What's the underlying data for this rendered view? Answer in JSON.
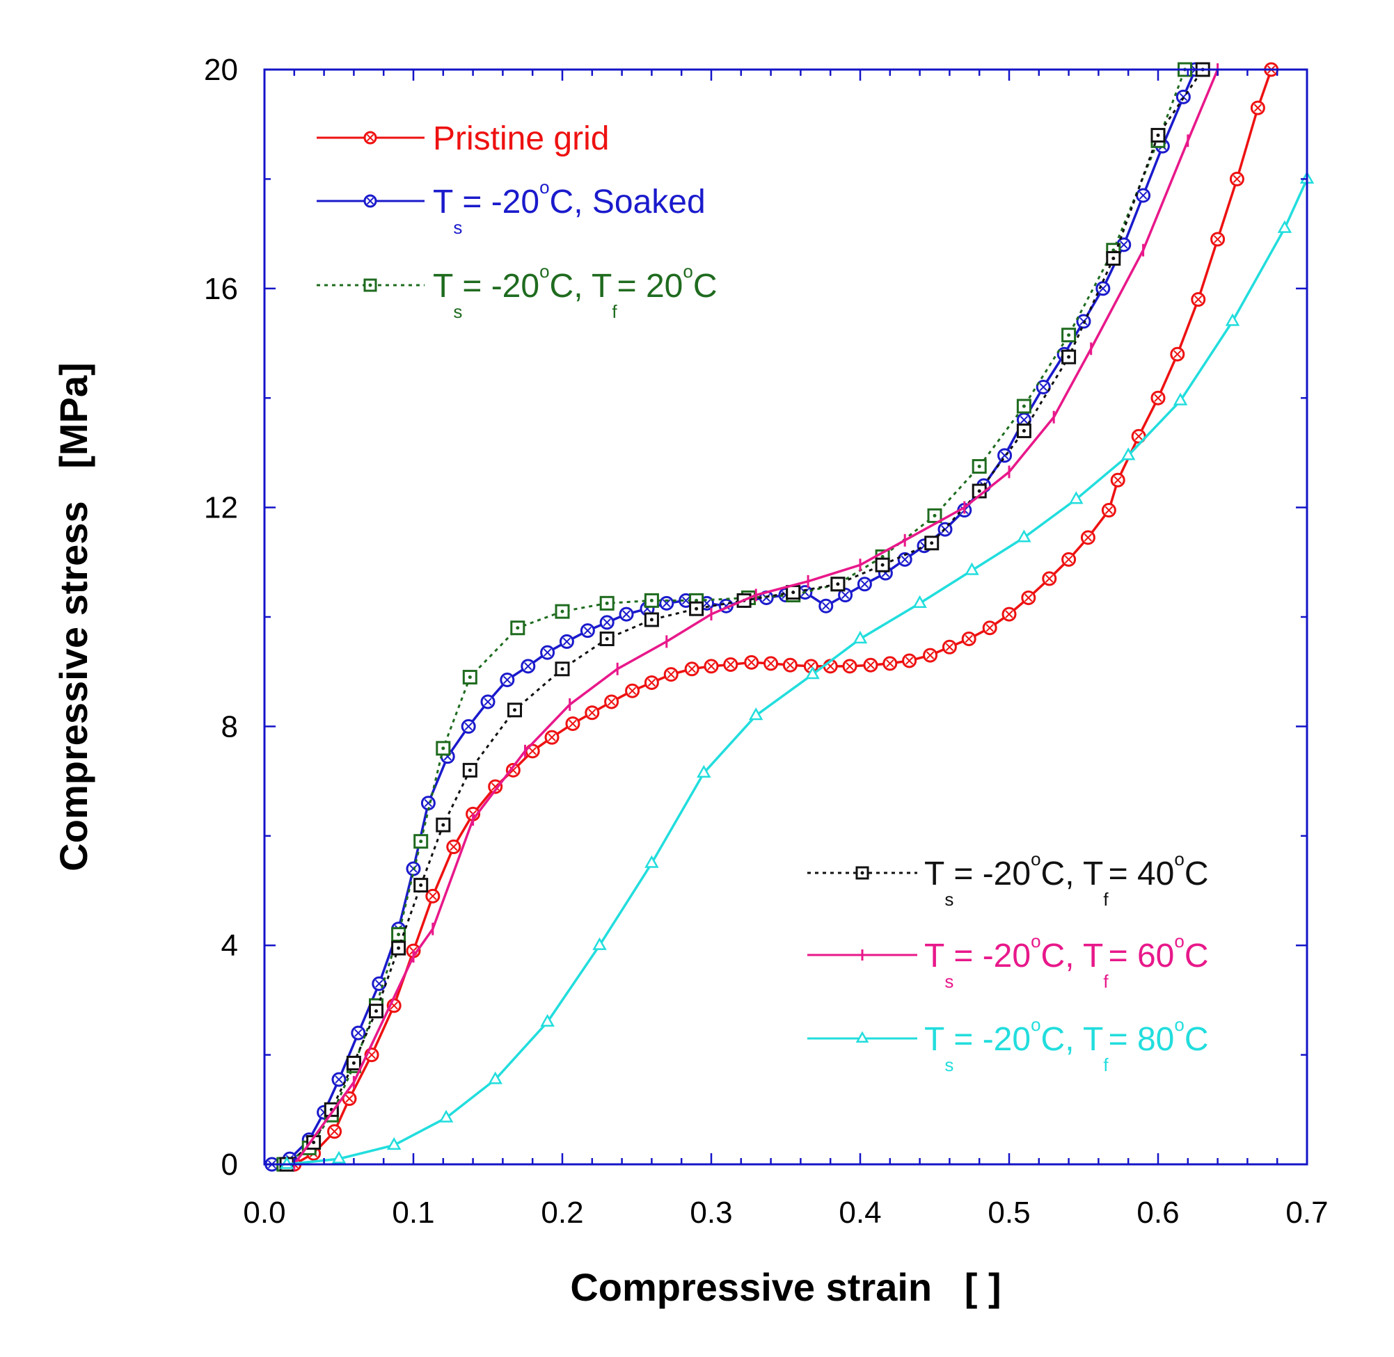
{
  "chart_data": {
    "type": "line",
    "title": "",
    "xlabel": "Compressive strain   [ ]",
    "ylabel": "Compressive stress   [MPa]",
    "xlim": [
      0.0,
      0.7
    ],
    "ylim": [
      0,
      20
    ],
    "x_ticks": [
      "0.0",
      "0.1",
      "0.2",
      "0.3",
      "0.4",
      "0.5",
      "0.6",
      "0.7"
    ],
    "y_ticks": [
      "0",
      "4",
      "8",
      "12",
      "16",
      "20"
    ],
    "grid": false,
    "series": [
      {
        "name": "Pristine grid",
        "label_parts": [
          "Pristine grid"
        ],
        "color": "#ee1111",
        "dash": "solid",
        "marker": "circle-x",
        "legend_position": "top-left",
        "points": [
          [
            0.02,
            0.0
          ],
          [
            0.033,
            0.2
          ],
          [
            0.047,
            0.6
          ],
          [
            0.057,
            1.2
          ],
          [
            0.072,
            2.0
          ],
          [
            0.087,
            2.9
          ],
          [
            0.1,
            3.9
          ],
          [
            0.113,
            4.9
          ],
          [
            0.127,
            5.8
          ],
          [
            0.14,
            6.4
          ],
          [
            0.155,
            6.9
          ],
          [
            0.167,
            7.2
          ],
          [
            0.18,
            7.55
          ],
          [
            0.193,
            7.8
          ],
          [
            0.207,
            8.05
          ],
          [
            0.22,
            8.25
          ],
          [
            0.233,
            8.45
          ],
          [
            0.247,
            8.65
          ],
          [
            0.26,
            8.8
          ],
          [
            0.273,
            8.95
          ],
          [
            0.287,
            9.05
          ],
          [
            0.3,
            9.1
          ],
          [
            0.313,
            9.13
          ],
          [
            0.327,
            9.17
          ],
          [
            0.34,
            9.15
          ],
          [
            0.353,
            9.12
          ],
          [
            0.367,
            9.1
          ],
          [
            0.38,
            9.1
          ],
          [
            0.393,
            9.1
          ],
          [
            0.407,
            9.12
          ],
          [
            0.42,
            9.15
          ],
          [
            0.433,
            9.2
          ],
          [
            0.447,
            9.3
          ],
          [
            0.46,
            9.45
          ],
          [
            0.473,
            9.6
          ],
          [
            0.487,
            9.8
          ],
          [
            0.5,
            10.05
          ],
          [
            0.513,
            10.35
          ],
          [
            0.527,
            10.7
          ],
          [
            0.54,
            11.05
          ],
          [
            0.553,
            11.45
          ],
          [
            0.567,
            11.95
          ],
          [
            0.573,
            12.5
          ],
          [
            0.587,
            13.3
          ],
          [
            0.6,
            14.0
          ],
          [
            0.613,
            14.8
          ],
          [
            0.627,
            15.8
          ],
          [
            0.64,
            16.9
          ],
          [
            0.653,
            18.0
          ],
          [
            0.667,
            19.3
          ],
          [
            0.676,
            20.0
          ]
        ]
      },
      {
        "name": "Ts = -20°C, Soaked",
        "label_parts": [
          "T",
          "s",
          " = -20",
          "o",
          "C, Soaked"
        ],
        "color": "#1a1acc",
        "dash": "solid",
        "marker": "circle-x",
        "legend_position": "top-left",
        "points": [
          [
            0.005,
            0.0
          ],
          [
            0.017,
            0.1
          ],
          [
            0.03,
            0.45
          ],
          [
            0.04,
            0.95
          ],
          [
            0.05,
            1.55
          ],
          [
            0.063,
            2.4
          ],
          [
            0.077,
            3.3
          ],
          [
            0.09,
            4.3
          ],
          [
            0.1,
            5.4
          ],
          [
            0.11,
            6.6
          ],
          [
            0.123,
            7.45
          ],
          [
            0.137,
            8.0
          ],
          [
            0.15,
            8.45
          ],
          [
            0.163,
            8.85
          ],
          [
            0.177,
            9.1
          ],
          [
            0.19,
            9.35
          ],
          [
            0.203,
            9.55
          ],
          [
            0.217,
            9.75
          ],
          [
            0.23,
            9.9
          ],
          [
            0.243,
            10.05
          ],
          [
            0.257,
            10.15
          ],
          [
            0.27,
            10.25
          ],
          [
            0.283,
            10.3
          ],
          [
            0.297,
            10.25
          ],
          [
            0.31,
            10.2
          ],
          [
            0.323,
            10.3
          ],
          [
            0.337,
            10.35
          ],
          [
            0.35,
            10.4
          ],
          [
            0.363,
            10.45
          ],
          [
            0.377,
            10.2
          ],
          [
            0.39,
            10.4
          ],
          [
            0.403,
            10.6
          ],
          [
            0.417,
            10.8
          ],
          [
            0.43,
            11.05
          ],
          [
            0.443,
            11.3
          ],
          [
            0.457,
            11.6
          ],
          [
            0.47,
            11.95
          ],
          [
            0.483,
            12.4
          ],
          [
            0.497,
            12.95
          ],
          [
            0.51,
            13.6
          ],
          [
            0.523,
            14.2
          ],
          [
            0.537,
            14.8
          ],
          [
            0.55,
            15.4
          ],
          [
            0.563,
            16.0
          ],
          [
            0.577,
            16.8
          ],
          [
            0.59,
            17.7
          ],
          [
            0.603,
            18.6
          ],
          [
            0.617,
            19.5
          ],
          [
            0.625,
            20.0
          ]
        ]
      },
      {
        "name": "Ts = -20°C, Tf= 20°C",
        "label_parts": [
          "T",
          "s",
          " = -20",
          "o",
          "C, T",
          "f",
          "= 20",
          "o",
          "C"
        ],
        "color": "#1f6b1f",
        "dash": "dotted",
        "marker": "square-dot",
        "legend_position": "top-left",
        "points": [
          [
            0.013,
            0.0
          ],
          [
            0.03,
            0.3
          ],
          [
            0.045,
            0.9
          ],
          [
            0.06,
            1.8
          ],
          [
            0.075,
            2.9
          ],
          [
            0.09,
            4.2
          ],
          [
            0.105,
            5.9
          ],
          [
            0.12,
            7.6
          ],
          [
            0.138,
            8.9
          ],
          [
            0.17,
            9.8
          ],
          [
            0.2,
            10.1
          ],
          [
            0.23,
            10.25
          ],
          [
            0.26,
            10.3
          ],
          [
            0.29,
            10.3
          ],
          [
            0.325,
            10.35
          ],
          [
            0.355,
            10.4
          ],
          [
            0.385,
            10.6
          ],
          [
            0.415,
            11.1
          ],
          [
            0.45,
            11.85
          ],
          [
            0.48,
            12.75
          ],
          [
            0.51,
            13.85
          ],
          [
            0.54,
            15.15
          ],
          [
            0.57,
            16.7
          ],
          [
            0.6,
            18.7
          ],
          [
            0.618,
            20.0
          ]
        ]
      },
      {
        "name": "Ts = -20°C, Tf= 40°C",
        "label_parts": [
          "T",
          "s",
          " = -20",
          "o",
          "C, T",
          "f",
          "= 40",
          "o",
          "C"
        ],
        "color": "#111111",
        "dash": "dotted",
        "marker": "square-dot",
        "legend_position": "bottom-right",
        "points": [
          [
            0.015,
            0.0
          ],
          [
            0.033,
            0.4
          ],
          [
            0.045,
            1.0
          ],
          [
            0.06,
            1.85
          ],
          [
            0.075,
            2.8
          ],
          [
            0.09,
            3.95
          ],
          [
            0.105,
            5.1
          ],
          [
            0.12,
            6.2
          ],
          [
            0.138,
            7.2
          ],
          [
            0.168,
            8.3
          ],
          [
            0.2,
            9.05
          ],
          [
            0.23,
            9.6
          ],
          [
            0.26,
            9.95
          ],
          [
            0.29,
            10.15
          ],
          [
            0.322,
            10.3
          ],
          [
            0.355,
            10.45
          ],
          [
            0.385,
            10.6
          ],
          [
            0.415,
            10.95
          ],
          [
            0.448,
            11.35
          ],
          [
            0.48,
            12.3
          ],
          [
            0.51,
            13.4
          ],
          [
            0.54,
            14.75
          ],
          [
            0.57,
            16.55
          ],
          [
            0.6,
            18.8
          ],
          [
            0.63,
            20.0
          ]
        ]
      },
      {
        "name": "Ts = -20°C, Tf= 60°C",
        "label_parts": [
          "T",
          "s",
          " = -20",
          "o",
          "C, T",
          "f",
          "= 60",
          "o",
          "C"
        ],
        "color": "#e8188a",
        "dash": "solid",
        "marker": "plus",
        "legend_position": "bottom-right",
        "points": [
          [
            0.02,
            0.0
          ],
          [
            0.06,
            1.5
          ],
          [
            0.1,
            3.8
          ],
          [
            0.113,
            4.3
          ],
          [
            0.14,
            6.3
          ],
          [
            0.175,
            7.55
          ],
          [
            0.205,
            8.4
          ],
          [
            0.237,
            9.05
          ],
          [
            0.27,
            9.55
          ],
          [
            0.3,
            10.05
          ],
          [
            0.33,
            10.4
          ],
          [
            0.365,
            10.65
          ],
          [
            0.4,
            10.95
          ],
          [
            0.43,
            11.4
          ],
          [
            0.47,
            12.0
          ],
          [
            0.5,
            12.65
          ],
          [
            0.53,
            13.65
          ],
          [
            0.555,
            14.9
          ],
          [
            0.59,
            16.7
          ],
          [
            0.62,
            18.7
          ],
          [
            0.64,
            20.0
          ]
        ]
      },
      {
        "name": "Ts = -20°C, Tf= 80°C",
        "label_parts": [
          "T",
          "s",
          " = -20",
          "o",
          "C, T",
          "f",
          "= 80",
          "o",
          "C"
        ],
        "color": "#22dddd",
        "dash": "solid",
        "marker": "triangle",
        "legend_position": "bottom-right",
        "points": [
          [
            0.015,
            0.0
          ],
          [
            0.05,
            0.1
          ],
          [
            0.087,
            0.35
          ],
          [
            0.122,
            0.85
          ],
          [
            0.155,
            1.55
          ],
          [
            0.19,
            2.6
          ],
          [
            0.225,
            4.0
          ],
          [
            0.26,
            5.5
          ],
          [
            0.295,
            7.15
          ],
          [
            0.33,
            8.2
          ],
          [
            0.368,
            8.95
          ],
          [
            0.4,
            9.6
          ],
          [
            0.44,
            10.25
          ],
          [
            0.475,
            10.85
          ],
          [
            0.51,
            11.45
          ],
          [
            0.545,
            12.15
          ],
          [
            0.58,
            12.95
          ],
          [
            0.615,
            13.95
          ],
          [
            0.65,
            15.4
          ],
          [
            0.685,
            17.1
          ],
          [
            0.7,
            18.0
          ]
        ]
      }
    ]
  }
}
